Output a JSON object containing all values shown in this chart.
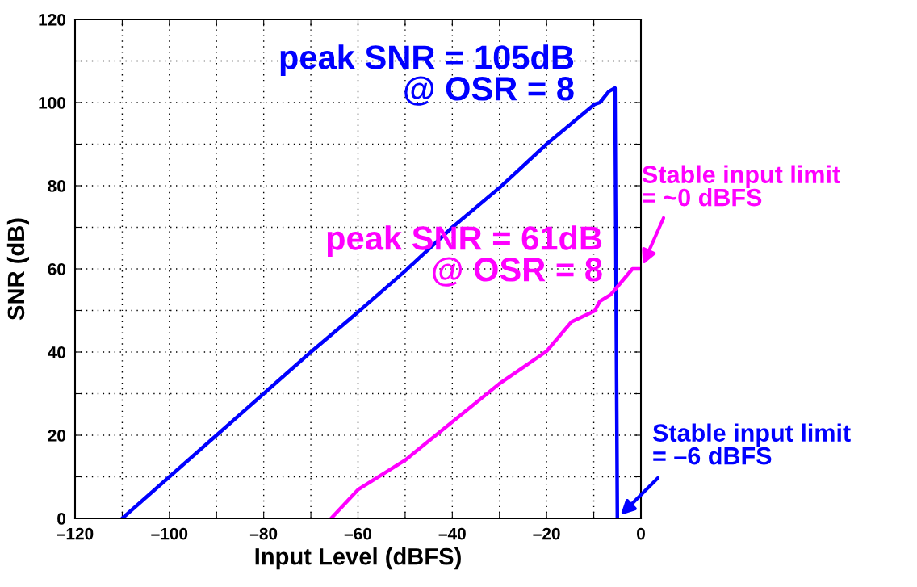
{
  "chart_data": {
    "type": "line",
    "xlabel": "Input Level (dBFS)",
    "ylabel": "SNR (dB)",
    "xlim": [
      -120,
      0
    ],
    "ylim": [
      0,
      120
    ],
    "xticks": [
      {
        "value": -120,
        "label": "–120"
      },
      {
        "value": -110,
        "label": null
      },
      {
        "value": -100,
        "label": "–100"
      },
      {
        "value": -90,
        "label": null
      },
      {
        "value": -80,
        "label": "–80"
      },
      {
        "value": -70,
        "label": null
      },
      {
        "value": -60,
        "label": "–60"
      },
      {
        "value": -50,
        "label": null
      },
      {
        "value": -40,
        "label": "–40"
      },
      {
        "value": -30,
        "label": null
      },
      {
        "value": -20,
        "label": "–20"
      },
      {
        "value": -10,
        "label": null
      },
      {
        "value": 0,
        "label": "0"
      }
    ],
    "yticks": [
      0,
      {
        "value": 10,
        "label": null
      },
      20,
      {
        "value": 30,
        "label": null
      },
      40,
      {
        "value": 50,
        "label": null
      },
      60,
      {
        "value": 70,
        "label": null
      },
      80,
      {
        "value": 90,
        "label": null
      },
      100,
      {
        "value": 110,
        "label": null
      },
      120
    ],
    "grid": true,
    "legend": false,
    "marker": "none",
    "line_style": "solid",
    "series": [
      {
        "color": "#0000ff",
        "x": [
          -110,
          -100,
          -90,
          -80,
          -70,
          -60,
          -50,
          -40,
          -30,
          -20,
          -9.8,
          -8.7,
          -6.8,
          -5.5,
          -5
        ],
        "values": [
          0,
          10,
          20,
          30,
          40,
          49.6,
          59.5,
          70,
          79.5,
          90,
          99.6,
          100,
          102.7,
          103.5,
          0
        ]
      },
      {
        "color": "#ff00ff",
        "x": [
          -65.7,
          -60,
          -50,
          -30,
          -20,
          -14.7,
          -9.8,
          -8.7,
          -6.4,
          -1.8,
          0
        ],
        "values": [
          0,
          6.9,
          14,
          32.4,
          40.2,
          47.3,
          49.9,
          52.2,
          53.8,
          60,
          60
        ]
      }
    ],
    "annotations": [
      "peak SNR = 105dB\n@ OSR = 8",
      "peak SNR = 61dB\n@ OSR = 8",
      {
        "text": "Stable input limit\n= ~0 dBFS",
        "x": 0,
        "y": 60
      },
      {
        "text": "Stable input limit\n= –6 dBFS",
        "x": -5,
        "y": 0
      }
    ]
  }
}
